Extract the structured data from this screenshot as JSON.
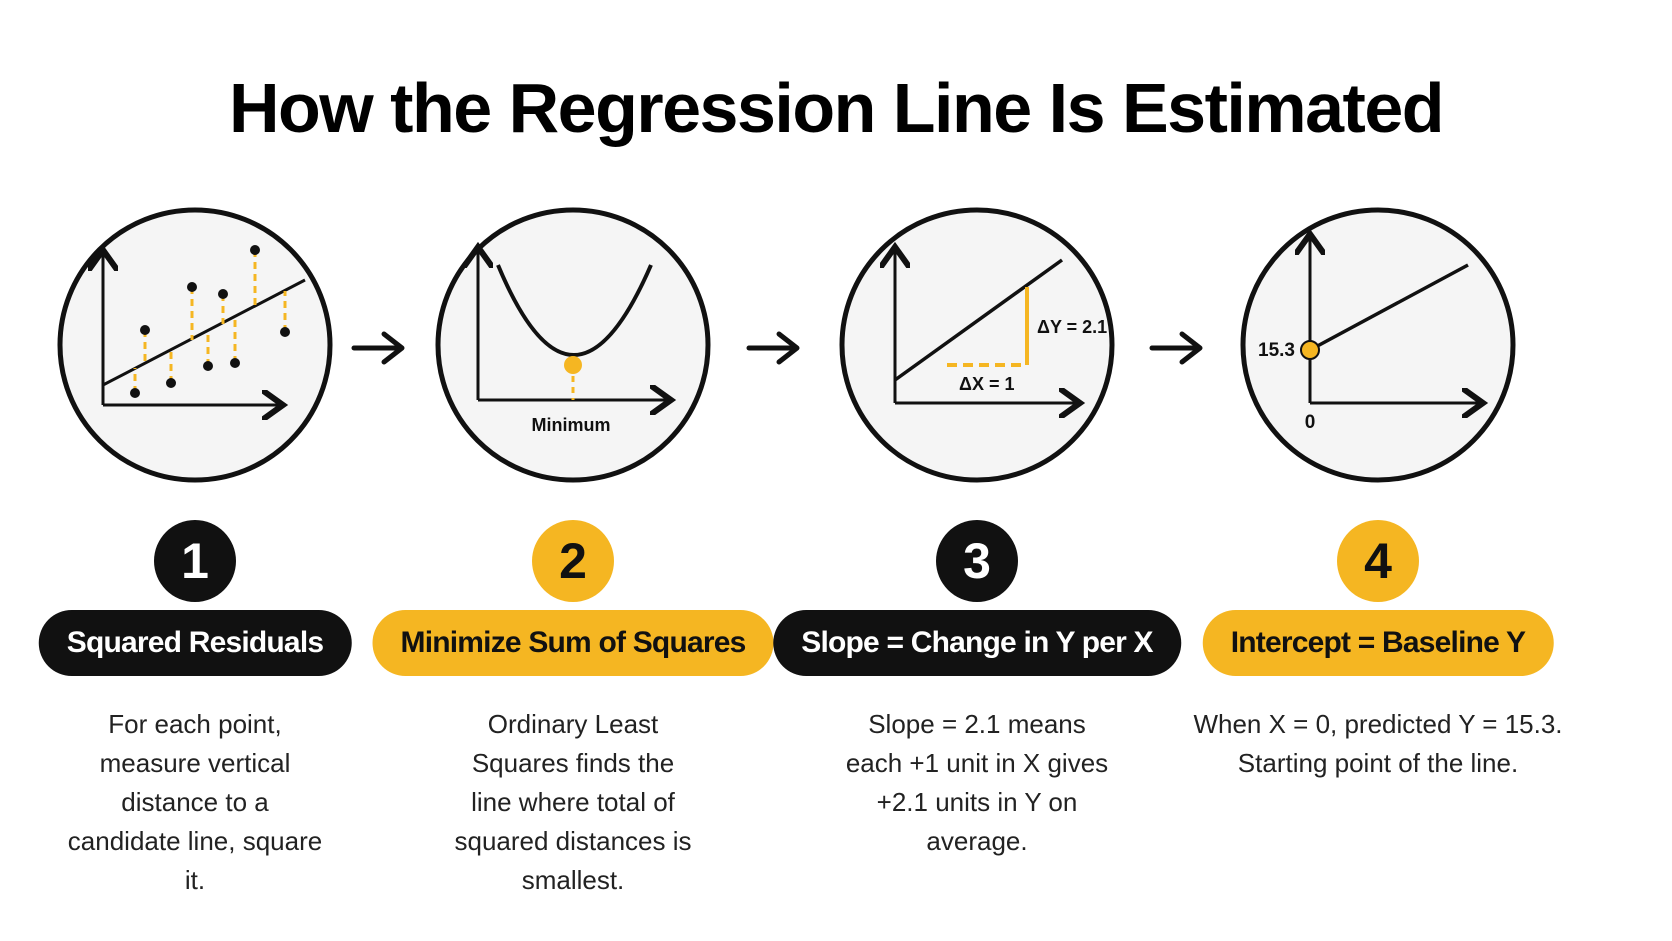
{
  "title": "How the Regression Line Is Estimated",
  "steps": [
    {
      "number": "1",
      "label": "Squared Residuals",
      "description": "For each point, measure vertical distance to a candidate line, square it."
    },
    {
      "number": "2",
      "label": "Minimize Sum of Squares",
      "description": "Ordinary Least Squares finds the line where total of squared distances is smallest."
    },
    {
      "number": "3",
      "label": "Slope = Change in Y per X",
      "description": "Slope = 2.1 means each +1 unit in X gives +2.1 units in Y on average."
    },
    {
      "number": "4",
      "label": "Intercept = Baseline Y",
      "description": "When X = 0, predicted Y = 15.3. Starting point of the line."
    }
  ],
  "diagrams": {
    "minimum_label": "Minimum",
    "delta_y_label": "ΔY = 2.1",
    "delta_x_label": "ΔX = 1",
    "intercept_label": "15.3",
    "origin_label": "0"
  },
  "colors": {
    "accent": "#f5b622",
    "dark": "#111111"
  },
  "icons": [
    "scatter-residuals-icon",
    "parabola-minimum-icon",
    "slope-triangle-icon",
    "intercept-line-icon",
    "arrow-right-icon"
  ]
}
